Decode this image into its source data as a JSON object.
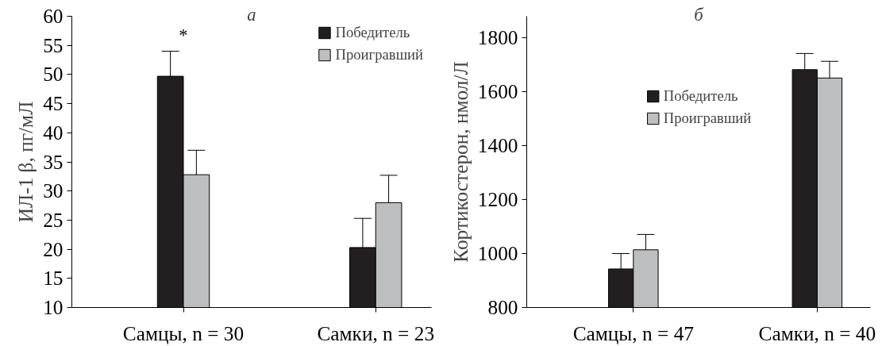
{
  "chart_data": [
    {
      "type": "bar",
      "title": "а",
      "ylabel": "ИЛ-1 β, пг/мЛ",
      "categories": [
        "Самцы, n = 30",
        "Самки, n = 23"
      ],
      "ylim": [
        10,
        60
      ],
      "yticks": [
        10,
        15,
        20,
        25,
        30,
        35,
        40,
        45,
        50,
        55,
        60
      ],
      "grid": false,
      "legend": "top right",
      "annotations": [
        "*"
      ],
      "series": [
        {
          "name": "Победитель",
          "color": "#231f20",
          "values": [
            49.7,
            20.3
          ],
          "errors": [
            4.3,
            5.0
          ]
        },
        {
          "name": "Проигравший",
          "color": "#bcbec0",
          "values": [
            32.8,
            28.0
          ],
          "errors": [
            4.2,
            4.7
          ]
        }
      ]
    },
    {
      "type": "bar",
      "title": "б",
      "ylabel": "Кортикостерон, нмол/Л",
      "categories": [
        "Самцы, n = 47",
        "Самки, n = 40"
      ],
      "ylim": [
        800,
        1880
      ],
      "yticks": [
        800,
        1000,
        1200,
        1400,
        1600,
        1800
      ],
      "grid": false,
      "legend": "top",
      "series": [
        {
          "name": "Победитель",
          "color": "#231f20",
          "values": [
            943,
            1682
          ],
          "errors": [
            57,
            60
          ]
        },
        {
          "name": "Проигравший",
          "color": "#bcbec0",
          "values": [
            1014,
            1651
          ],
          "errors": [
            57,
            62
          ]
        }
      ]
    }
  ]
}
